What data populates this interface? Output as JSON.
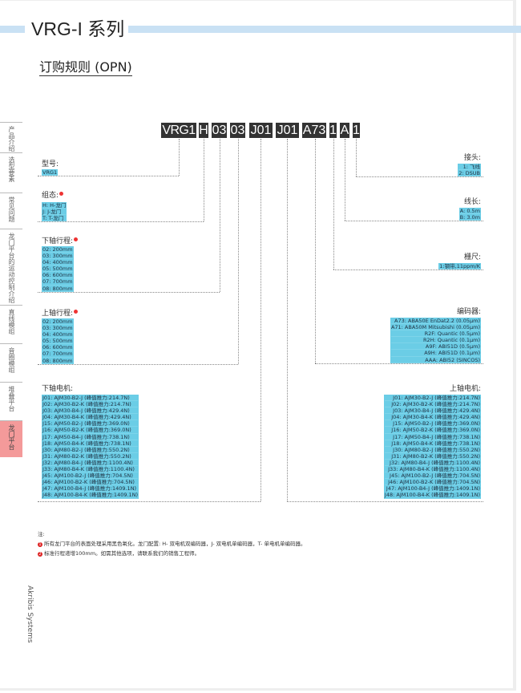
{
  "header": {
    "title": "VRG-I 系列",
    "subtitle": "订购规则 (OPN)"
  },
  "sidebar": {
    "items": [
      {
        "label": "产品介绍",
        "active": false
      },
      {
        "label": "选型要素",
        "active": false
      },
      {
        "label": "常见问题",
        "active": false
      },
      {
        "label": "龙门平台的运动控制介绍",
        "active": false
      },
      {
        "label": "直线模组",
        "active": false
      },
      {
        "label": "音圈模组",
        "active": false
      },
      {
        "label": "堆叠平台",
        "active": false
      },
      {
        "label": "龙门平台",
        "active": true
      }
    ],
    "brand": "Akribis Systems",
    "active_color": "#f49a9a"
  },
  "code_segments": [
    "VRG1",
    "H",
    "03",
    "03",
    "J01",
    "J01",
    "A73",
    "1",
    "A",
    "1"
  ],
  "left_fields": [
    {
      "label": "型号:",
      "note": false,
      "options": [
        "VRG1"
      ]
    },
    {
      "label": "组态:",
      "note": true,
      "options": [
        "H: H-龙门",
        "J: J-龙门",
        "T: T-龙门"
      ]
    },
    {
      "label": "下轴行程:",
      "note": true,
      "options": [
        "02: 200mm",
        "03: 300mm",
        "04: 400mm",
        "05: 500mm",
        "06: 600mm",
        "07: 700mm",
        "08: 800mm"
      ]
    },
    {
      "label": "上轴行程:",
      "note": true,
      "options": [
        "02: 200mm",
        "03: 300mm",
        "04: 400mm",
        "05: 500mm",
        "06: 600mm",
        "07: 700mm",
        "08: 800mm"
      ]
    },
    {
      "label": "下轴电机:",
      "note": false,
      "options": [
        "J01: AJM30-B2-J (峰值推力:214.7N)",
        "J02: AJM30-B2-K (峰值推力:214.7N)",
        "J03: AJM30-B4-J (峰值推力:429.4N)",
        "J04: AJM30-B4-K (峰值推力:429.4N)",
        "J15: AJM50-B2-J (峰值推力:369.0N)",
        "J16: AJM50-B2-K (峰值推力:369.0N)",
        "J17: AJM50-B4-J (峰值推力:738.1N)",
        "J18: AJM50-B4-K (峰值推力:738.1N)",
        "J30: AJM80-B2-J (峰值推力:550.2N)",
        "J31: AJM80-B2-K (峰值推力:550.2N)",
        "J32: AJM80-B4-J (峰值推力:1100.4N)",
        "J33: AJM80-B4-K (峰值推力:1100.4N)",
        "J45: AJM100-B2-J (峰值推力:704.5N)",
        "J46: AJM100-B2-K (峰值推力:704.5N)",
        "J47: AJM100-B4-J (峰值推力:1409.1N)",
        "J48: AJM100-B4-K (峰值推力:1409.1N)"
      ]
    }
  ],
  "right_fields": [
    {
      "label": "接头:",
      "options": [
        "1: 飞线",
        "2: DSUB"
      ]
    },
    {
      "label": "线长:",
      "options": [
        "A: 0.5m",
        "B: 3.0m"
      ]
    },
    {
      "label": "栅尺:",
      "options": [
        "1:钢带,11ppm/K"
      ]
    },
    {
      "label": "编码器:",
      "options": [
        "A73: ABA50E EnDat2.2 (0.05μm)",
        "A71: ABA50M Mitsubishi (0.05μm)",
        "R2F: Quantic (0.5μm)",
        "R2H: Quantic (0.1μm)",
        "A9F: ABI51D (0.5μm)",
        "A9H: ABI51D (0.1μm)",
        "AAA: ABI52 (SINCOS)"
      ]
    },
    {
      "label": "上轴电机:",
      "options": [
        "J01: AJM30-B2-J (峰值推力:214.7N)",
        "J02: AJM30-B2-K (峰值推力:214.7N)",
        "J03: AJM30-B4-J (峰值推力:429.4N)",
        "J04: AJM30-B4-K (峰值推力:429.4N)",
        "J15: AJM50-B2-J (峰值推力:369.0N)",
        "J16: AJM50-B2-K (峰值推力:369.0N)",
        "J17: AJM50-B4-J (峰值推力:738.1N)",
        "J18: AJM50-B4-K (峰值推力:738.1N)",
        "J30: AJM80-B2-J (峰值推力:550.2N)",
        "J31: AJM80-B2-K (峰值推力:550.2N)",
        "J32: AJM80-B4-J (峰值推力:1100.4N)",
        "J33: AJM80-B4-K (峰值推力:1100.4N)",
        "J45: AJM100-B2-J (峰值推力:704.5N)",
        "J46: AJM100-B2-K (峰值推力:704.5N)",
        "J47: AJM100-B4-J (峰值推力:1409.1N)",
        "J48: AJM100-B4-K (峰值推力:1409.1N)"
      ]
    }
  ],
  "notes": {
    "heading": "注:",
    "items": [
      {
        "num": "1",
        "text": "所有龙门平台的表面处理采用黑色氧化。龙门配置: H- 双电机双编码器，J- 双电机单编码器，T- 单电机单编码器。"
      },
      {
        "num": "2",
        "text": "标准行程递增100mm。如需其他选项，请联系我们的销售工程师。"
      }
    ]
  },
  "colors": {
    "option_bg": "#6bcde6",
    "code_bg": "#333333",
    "header_bar": "#c9e1f4",
    "note_marker": "#dd2222"
  }
}
